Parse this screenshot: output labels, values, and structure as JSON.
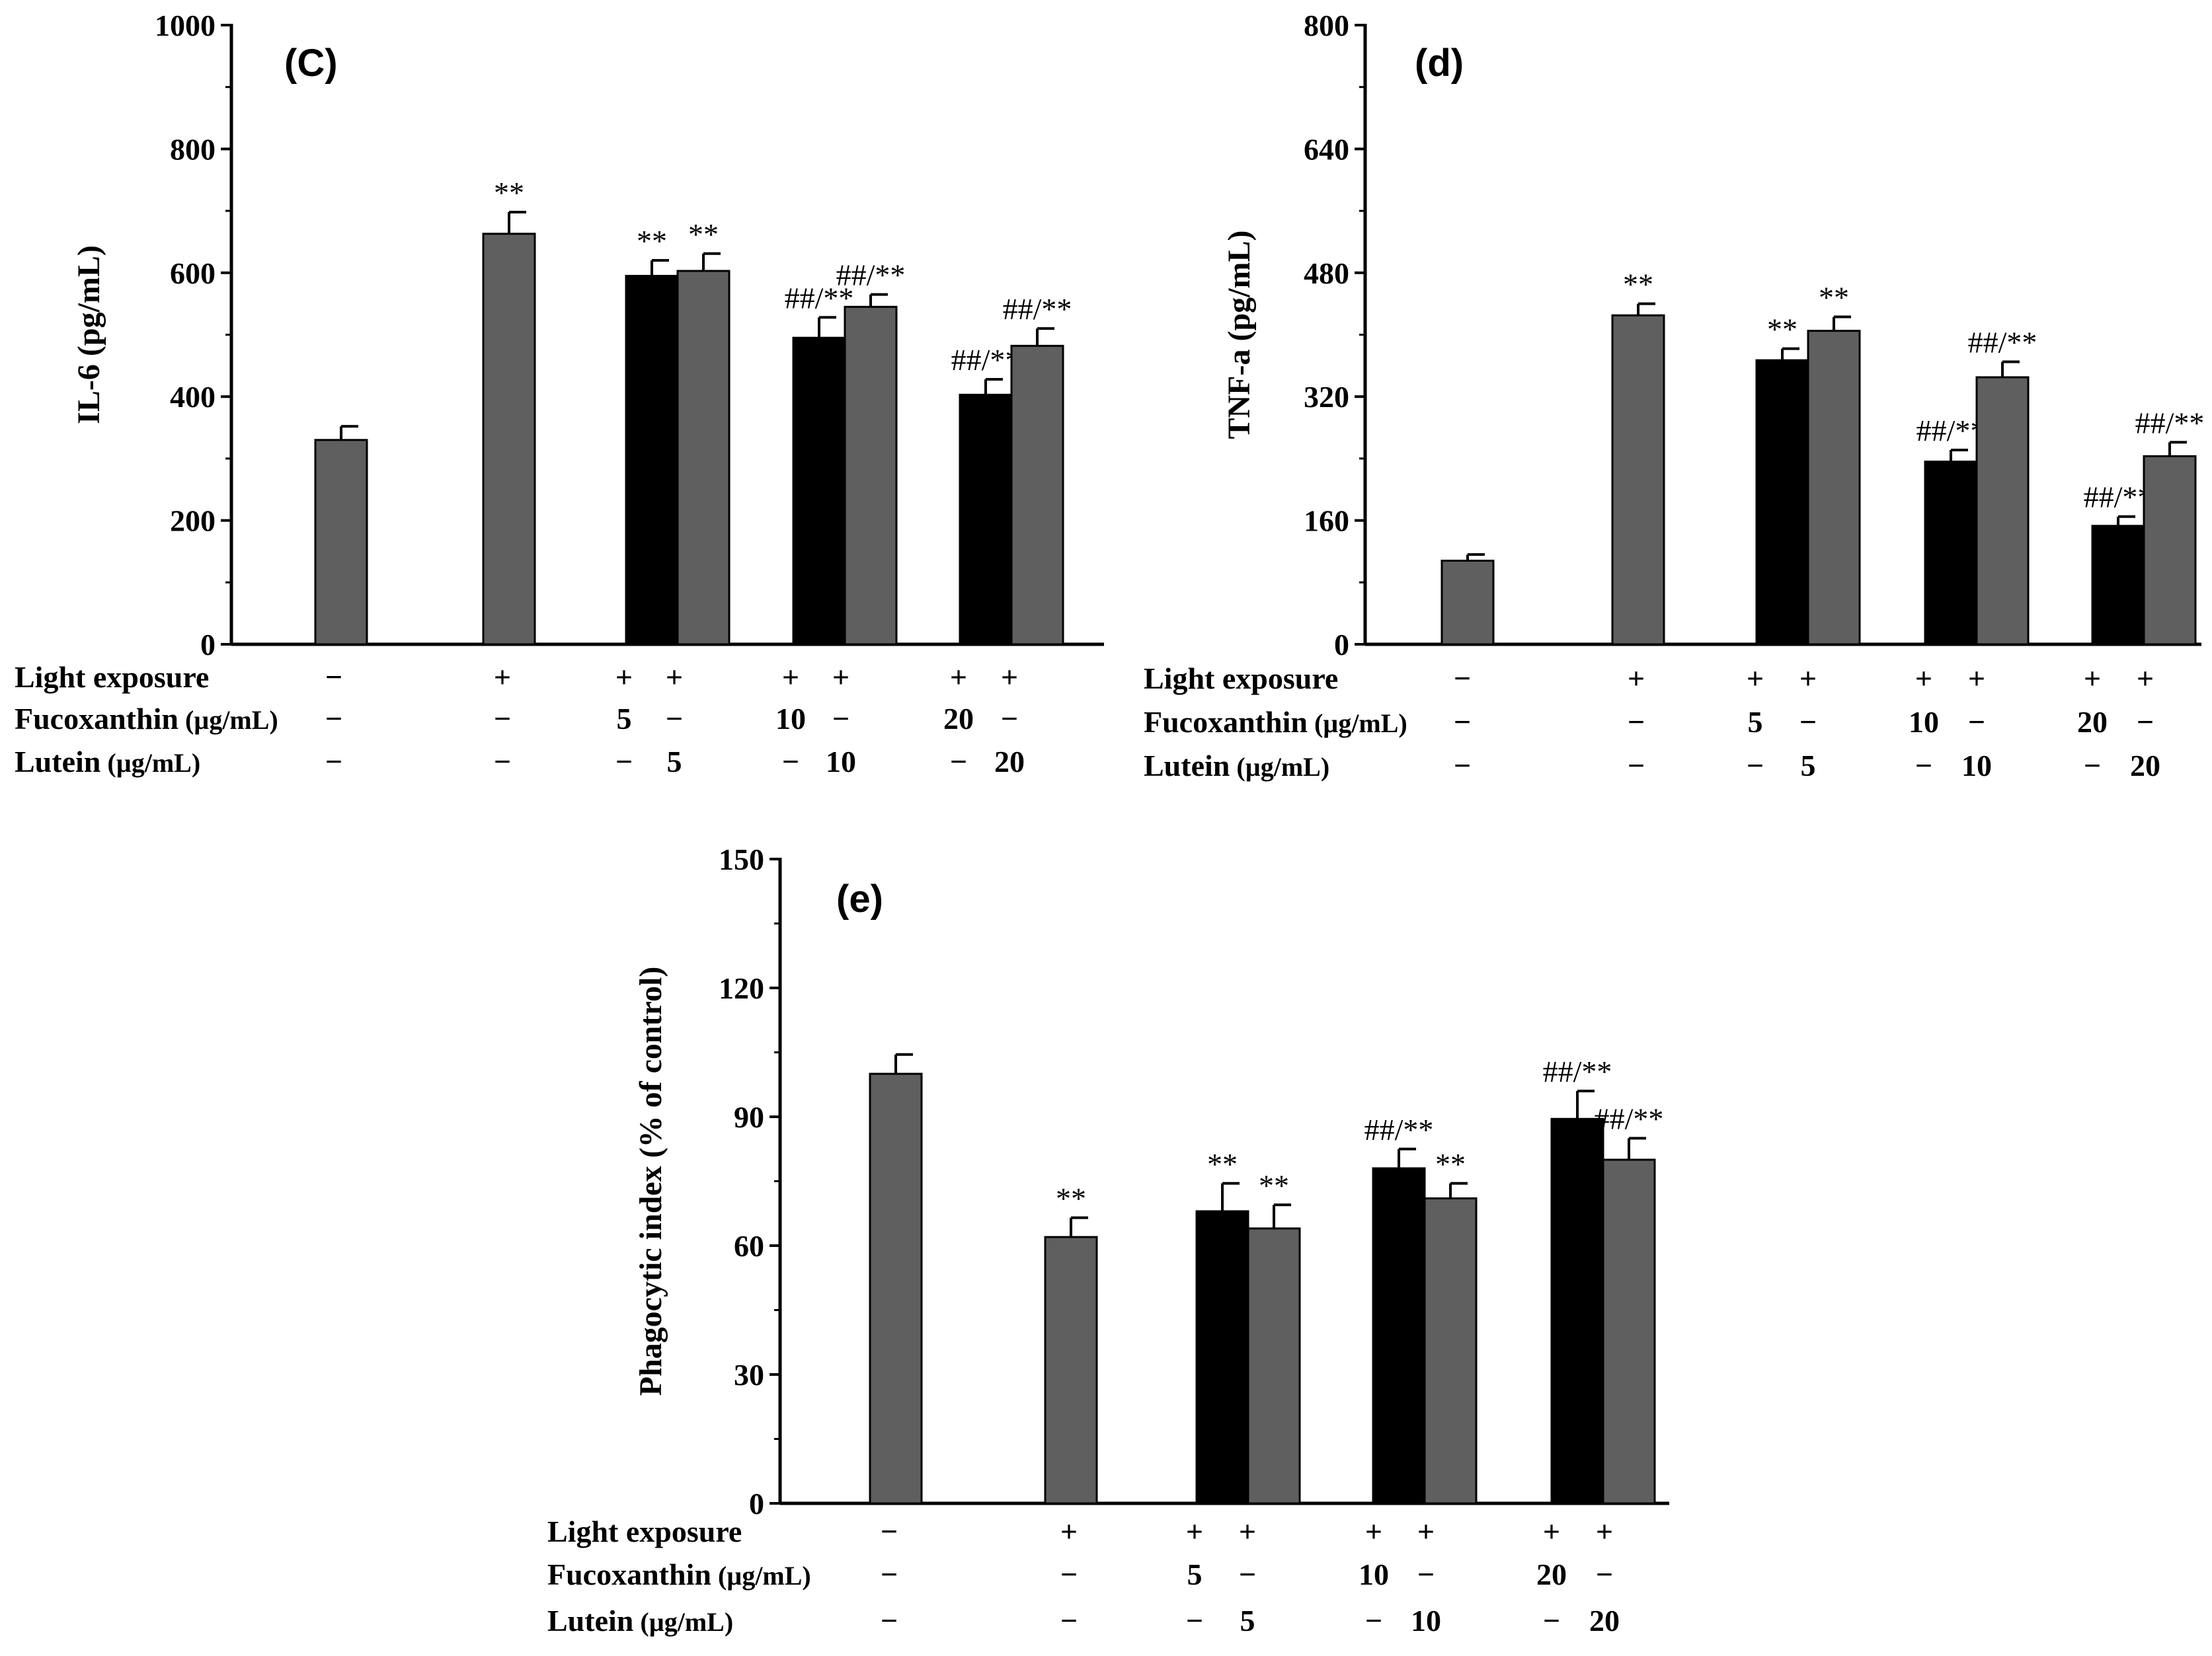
{
  "treatment_rows": [
    {
      "label": "Light exposure",
      "unit": ""
    },
    {
      "label": "Fucoxanthin",
      "unit": "(µg/mL)"
    },
    {
      "label": "Lutein",
      "unit": "(µg/mL)"
    }
  ],
  "chart_data": [
    {
      "id": "c",
      "type": "bar",
      "title": "(C)",
      "ylabel": "IL-6 (pg/mL)",
      "ylim": [
        0,
        1000
      ],
      "yticks": [
        0,
        200,
        400,
        600,
        800,
        1000
      ],
      "series_colors": {
        "Fucoxanthin": "#000000",
        "Lutein": "#5f5f5f"
      },
      "bars": [
        {
          "group": 0,
          "series": "Lutein",
          "value": 330,
          "error": 22,
          "sig": ""
        },
        {
          "group": 1,
          "series": "Lutein",
          "value": 663,
          "error": 35,
          "sig": "**"
        },
        {
          "group": 2,
          "series": "Fucoxanthin",
          "value": 595,
          "error": 25,
          "sig": "**"
        },
        {
          "group": 2,
          "series": "Lutein",
          "value": 603,
          "error": 28,
          "sig": "**"
        },
        {
          "group": 3,
          "series": "Fucoxanthin",
          "value": 495,
          "error": 33,
          "sig": "##/**"
        },
        {
          "group": 3,
          "series": "Lutein",
          "value": 545,
          "error": 20,
          "sig": "##/**"
        },
        {
          "group": 4,
          "series": "Fucoxanthin",
          "value": 403,
          "error": 25,
          "sig": "##/**"
        },
        {
          "group": 4,
          "series": "Lutein",
          "value": 482,
          "error": 28,
          "sig": "##/**"
        }
      ],
      "treatments": {
        "light": [
          "−",
          "+",
          "+",
          "+",
          "+",
          "+",
          "+",
          "+"
        ],
        "fucoxanthin": [
          "−",
          "−",
          "5",
          "−",
          "10",
          "−",
          "20",
          "−"
        ],
        "lutein": [
          "−",
          "−",
          "−",
          "5",
          "−",
          "10",
          "−",
          "20"
        ]
      }
    },
    {
      "id": "d",
      "type": "bar",
      "title": "(d)",
      "ylabel": "TNF-a (pg/mL)",
      "ylim": [
        0,
        800
      ],
      "yticks": [
        0,
        160,
        320,
        480,
        640,
        800
      ],
      "series_colors": {
        "Fucoxanthin": "#000000",
        "Lutein": "#5f5f5f"
      },
      "bars": [
        {
          "group": 0,
          "series": "Lutein",
          "value": 108,
          "error": 8,
          "sig": ""
        },
        {
          "group": 1,
          "series": "Lutein",
          "value": 425,
          "error": 15,
          "sig": "**"
        },
        {
          "group": 2,
          "series": "Fucoxanthin",
          "value": 367,
          "error": 15,
          "sig": "**"
        },
        {
          "group": 2,
          "series": "Lutein",
          "value": 405,
          "error": 18,
          "sig": "**"
        },
        {
          "group": 3,
          "series": "Fucoxanthin",
          "value": 236,
          "error": 15,
          "sig": "##/**"
        },
        {
          "group": 3,
          "series": "Lutein",
          "value": 345,
          "error": 20,
          "sig": "##/**"
        },
        {
          "group": 4,
          "series": "Fucoxanthin",
          "value": 153,
          "error": 12,
          "sig": "##/**"
        },
        {
          "group": 4,
          "series": "Lutein",
          "value": 243,
          "error": 18,
          "sig": "##/**"
        }
      ],
      "treatments": {
        "light": [
          "−",
          "+",
          "+",
          "+",
          "+",
          "+",
          "+",
          "+"
        ],
        "fucoxanthin": [
          "−",
          "−",
          "5",
          "−",
          "10",
          "−",
          "20",
          "−"
        ],
        "lutein": [
          "−",
          "−",
          "−",
          "5",
          "−",
          "10",
          "−",
          "20"
        ]
      }
    },
    {
      "id": "e",
      "type": "bar",
      "title": "(e)",
      "ylabel": "Phagocytic index (% of control)",
      "ylim": [
        0,
        150
      ],
      "yticks": [
        0,
        30,
        60,
        90,
        120,
        150
      ],
      "series_colors": {
        "Fucoxanthin": "#000000",
        "Lutein": "#5f5f5f"
      },
      "bars": [
        {
          "group": 0,
          "series": "Lutein",
          "value": 100,
          "error": 4.5,
          "sig": ""
        },
        {
          "group": 1,
          "series": "Lutein",
          "value": 62,
          "error": 4.5,
          "sig": "**"
        },
        {
          "group": 2,
          "series": "Fucoxanthin",
          "value": 68,
          "error": 6.5,
          "sig": "**"
        },
        {
          "group": 2,
          "series": "Lutein",
          "value": 64,
          "error": 5.5,
          "sig": "**"
        },
        {
          "group": 3,
          "series": "Fucoxanthin",
          "value": 78,
          "error": 4.5,
          "sig": "##/**"
        },
        {
          "group": 3,
          "series": "Lutein",
          "value": 71,
          "error": 3.5,
          "sig": "**"
        },
        {
          "group": 4,
          "series": "Fucoxanthin",
          "value": 89.5,
          "error": 6.5,
          "sig": "##/**"
        },
        {
          "group": 4,
          "series": "Lutein",
          "value": 80,
          "error": 5,
          "sig": "##/**"
        }
      ],
      "treatments": {
        "light": [
          "−",
          "+",
          "+",
          "+",
          "+",
          "+",
          "+",
          "+"
        ],
        "fucoxanthin": [
          "−",
          "−",
          "5",
          "−",
          "10",
          "−",
          "20",
          "−"
        ],
        "lutein": [
          "−",
          "−",
          "−",
          "5",
          "−",
          "10",
          "−",
          "20"
        ]
      }
    }
  ]
}
